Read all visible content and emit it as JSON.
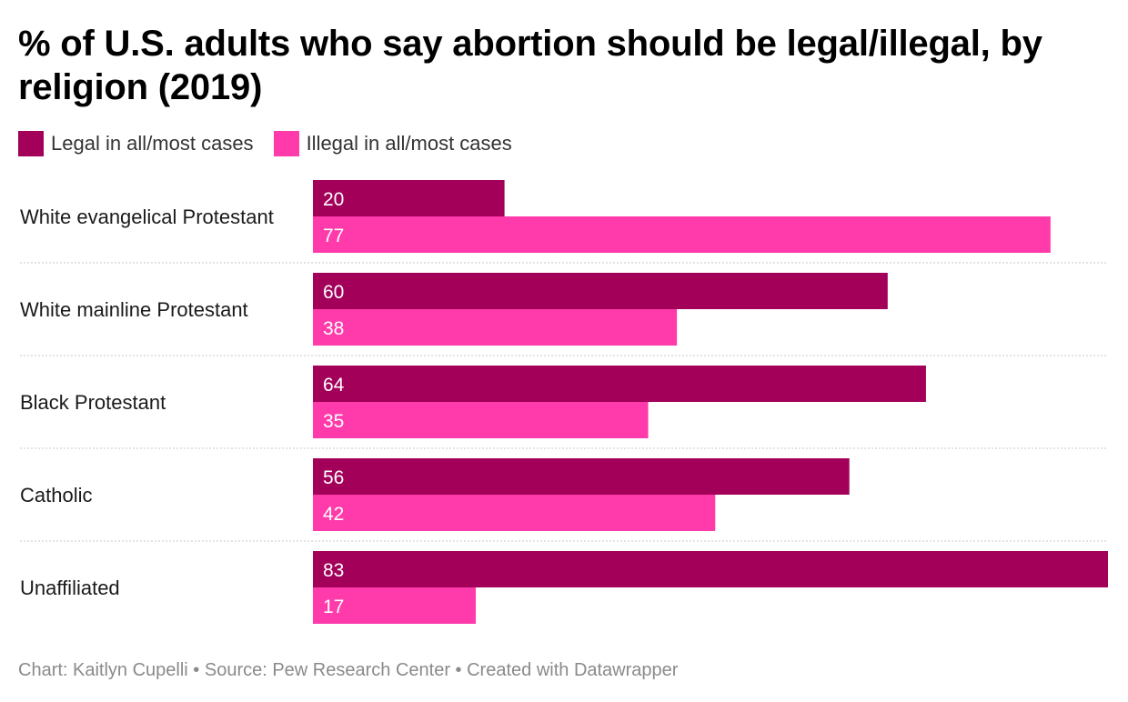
{
  "header": {
    "title": "% of U.S. adults who say abortion should be legal/illegal, by religion (2019)"
  },
  "legend": [
    {
      "label": "Legal in all/most cases",
      "color": "#a3005a"
    },
    {
      "label": "Illegal in all/most cases",
      "color": "#ff3aaa"
    }
  ],
  "chart_data": {
    "type": "bar",
    "orientation": "horizontal",
    "grouped": true,
    "title": "% of U.S. adults who say abortion should be legal/illegal, by religion (2019)",
    "categories": [
      "White evangelical Protestant",
      "White mainline Protestant",
      "Black Protestant",
      "Catholic",
      "Unaffiliated"
    ],
    "series": [
      {
        "name": "Legal in all/most cases",
        "color": "#a3005a",
        "values": [
          20,
          60,
          64,
          56,
          83
        ]
      },
      {
        "name": "Illegal in all/most cases",
        "color": "#ff3aaa",
        "values": [
          77,
          38,
          35,
          42,
          17
        ]
      }
    ],
    "xlim": [
      0,
      83
    ],
    "grid": false,
    "legend_position": "top-left"
  },
  "footer": {
    "text": "Chart: Kaitlyn Cupelli • Source: Pew Research Center • Created with Datawrapper"
  }
}
